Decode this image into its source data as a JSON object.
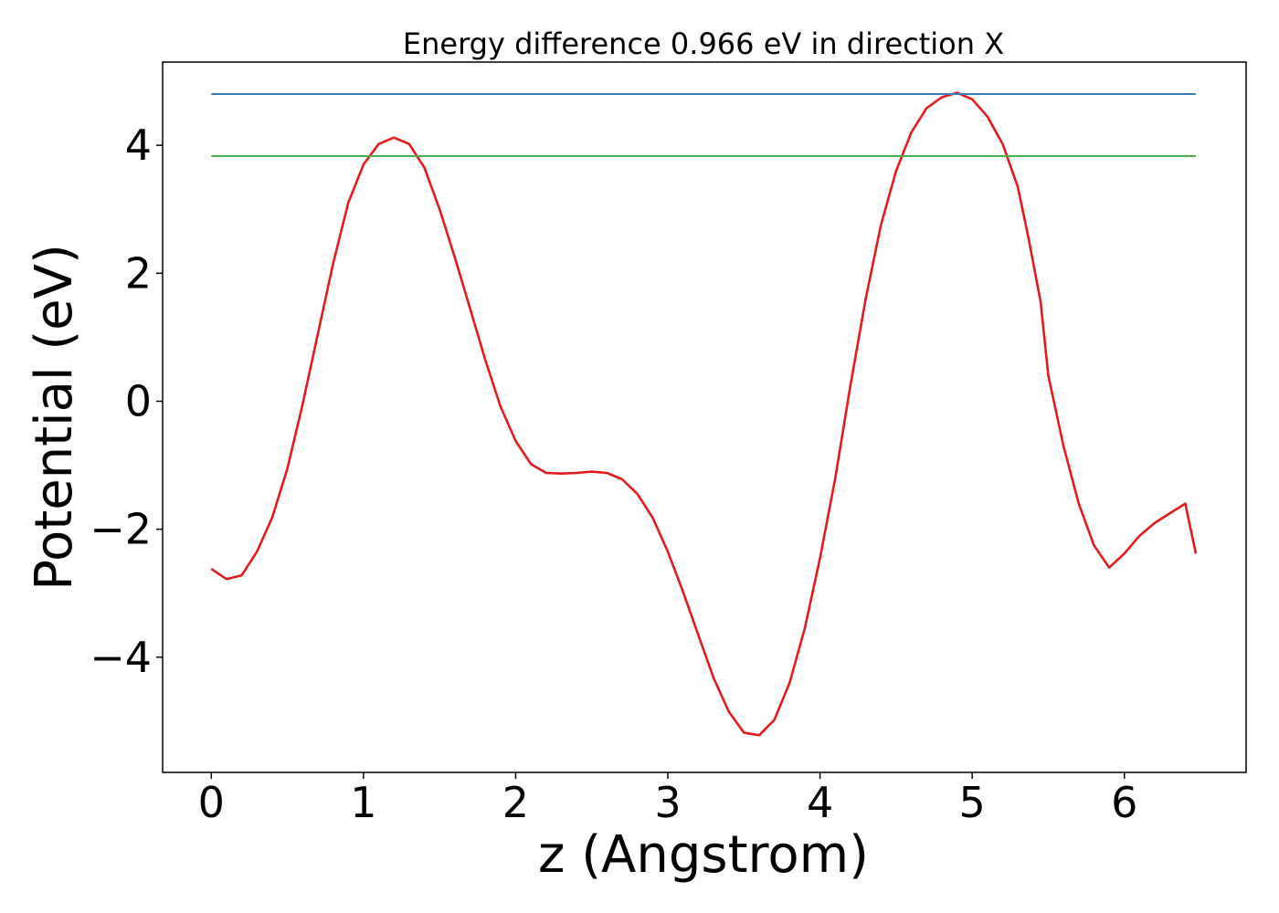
{
  "chart_data": {
    "type": "line",
    "title": "Energy difference 0.966 eV in direction X",
    "xlabel": "z (Angstrom)",
    "ylabel": "Potential (eV)",
    "xlim": [
      -0.32,
      6.8
    ],
    "ylim": [
      -5.8,
      5.3
    ],
    "x_ticks": [
      0,
      1,
      2,
      3,
      4,
      5,
      6
    ],
    "x_tick_labels": [
      "0",
      "1",
      "2",
      "3",
      "4",
      "5",
      "6"
    ],
    "y_ticks": [
      4,
      2,
      0,
      -2,
      -4
    ],
    "y_tick_labels": [
      "4",
      "2",
      "0",
      "−2",
      "−4"
    ],
    "grid": false,
    "series": [
      {
        "color": "#e41a1c",
        "x": [
          0.0,
          0.1,
          0.2,
          0.3,
          0.4,
          0.5,
          0.6,
          0.7,
          0.8,
          0.9,
          1.0,
          1.1,
          1.2,
          1.3,
          1.4,
          1.5,
          1.6,
          1.7,
          1.8,
          1.9,
          2.0,
          2.1,
          2.2,
          2.3,
          2.4,
          2.5,
          2.6,
          2.7,
          2.8,
          2.9,
          3.0,
          3.1,
          3.2,
          3.3,
          3.4,
          3.5,
          3.6,
          3.7,
          3.8,
          3.9,
          4.0,
          4.1,
          4.2,
          4.3,
          4.4,
          4.5,
          4.6,
          4.7,
          4.8,
          4.9,
          5.0,
          5.1,
          5.2,
          5.3,
          5.37,
          5.45,
          5.5,
          5.6,
          5.7,
          5.8,
          5.9,
          6.0,
          6.1,
          6.2,
          6.3,
          6.4,
          6.47
        ],
        "y": [
          -2.62,
          -2.78,
          -2.72,
          -2.35,
          -1.82,
          -1.05,
          -0.05,
          1.05,
          2.15,
          3.1,
          3.7,
          4.02,
          4.12,
          4.02,
          3.65,
          3.0,
          2.25,
          1.45,
          0.65,
          -0.08,
          -0.62,
          -0.98,
          -1.12,
          -1.13,
          -1.12,
          -1.1,
          -1.12,
          -1.22,
          -1.45,
          -1.82,
          -2.35,
          -2.98,
          -3.65,
          -4.32,
          -4.85,
          -5.18,
          -5.22,
          -4.98,
          -4.4,
          -3.55,
          -2.45,
          -1.2,
          0.25,
          1.6,
          2.75,
          3.6,
          4.2,
          4.58,
          4.75,
          4.82,
          4.72,
          4.45,
          4.02,
          3.35,
          2.55,
          1.55,
          0.4,
          -0.7,
          -1.6,
          -2.25,
          -2.6,
          -2.38,
          -2.1,
          -1.9,
          -1.75,
          -1.6,
          -2.38
        ]
      },
      {
        "color": "#377eb8",
        "x": [
          0.0,
          6.47
        ],
        "y": [
          4.8,
          4.8
        ]
      },
      {
        "color": "#4daf4a",
        "x": [
          0.0,
          6.47
        ],
        "y": [
          3.83,
          3.83
        ]
      }
    ]
  }
}
